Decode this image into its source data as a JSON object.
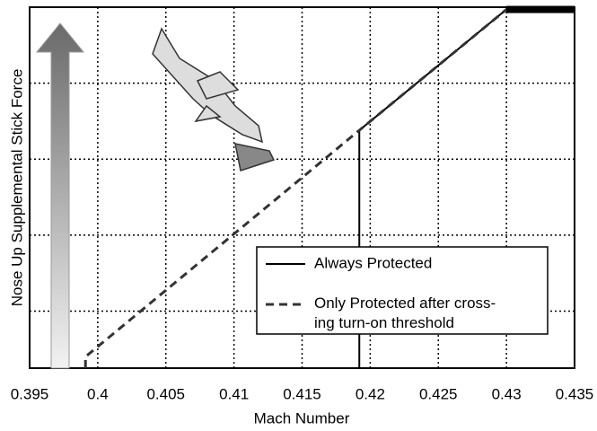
{
  "chart_data": {
    "type": "line",
    "xlabel": "Mach Number",
    "ylabel": "Nose Up Supplemental Stick Force",
    "xlim": [
      0.395,
      0.435
    ],
    "xticks": [
      0.395,
      0.4,
      0.405,
      0.41,
      0.415,
      0.42,
      0.425,
      0.43,
      0.435
    ],
    "ylim": [
      0,
      4.75
    ],
    "ygrid": [
      0.75,
      1.75,
      2.75,
      3.75
    ],
    "grid": true,
    "series": [
      {
        "name": "Always Protected",
        "color": "#000000",
        "dash": false,
        "x": [
          0.4192,
          0.4192,
          0.43,
          0.435
        ],
        "values": [
          0,
          3.13,
          4.72,
          4.72
        ]
      },
      {
        "name": "Only Protected after cross-\ning turn-on threshold",
        "color": "#333333",
        "dash": true,
        "x": [
          0.3991,
          0.3991,
          0.4192,
          0.43,
          0.435
        ],
        "values": [
          0,
          0.15,
          3.13,
          4.72,
          4.72
        ]
      }
    ]
  }
}
